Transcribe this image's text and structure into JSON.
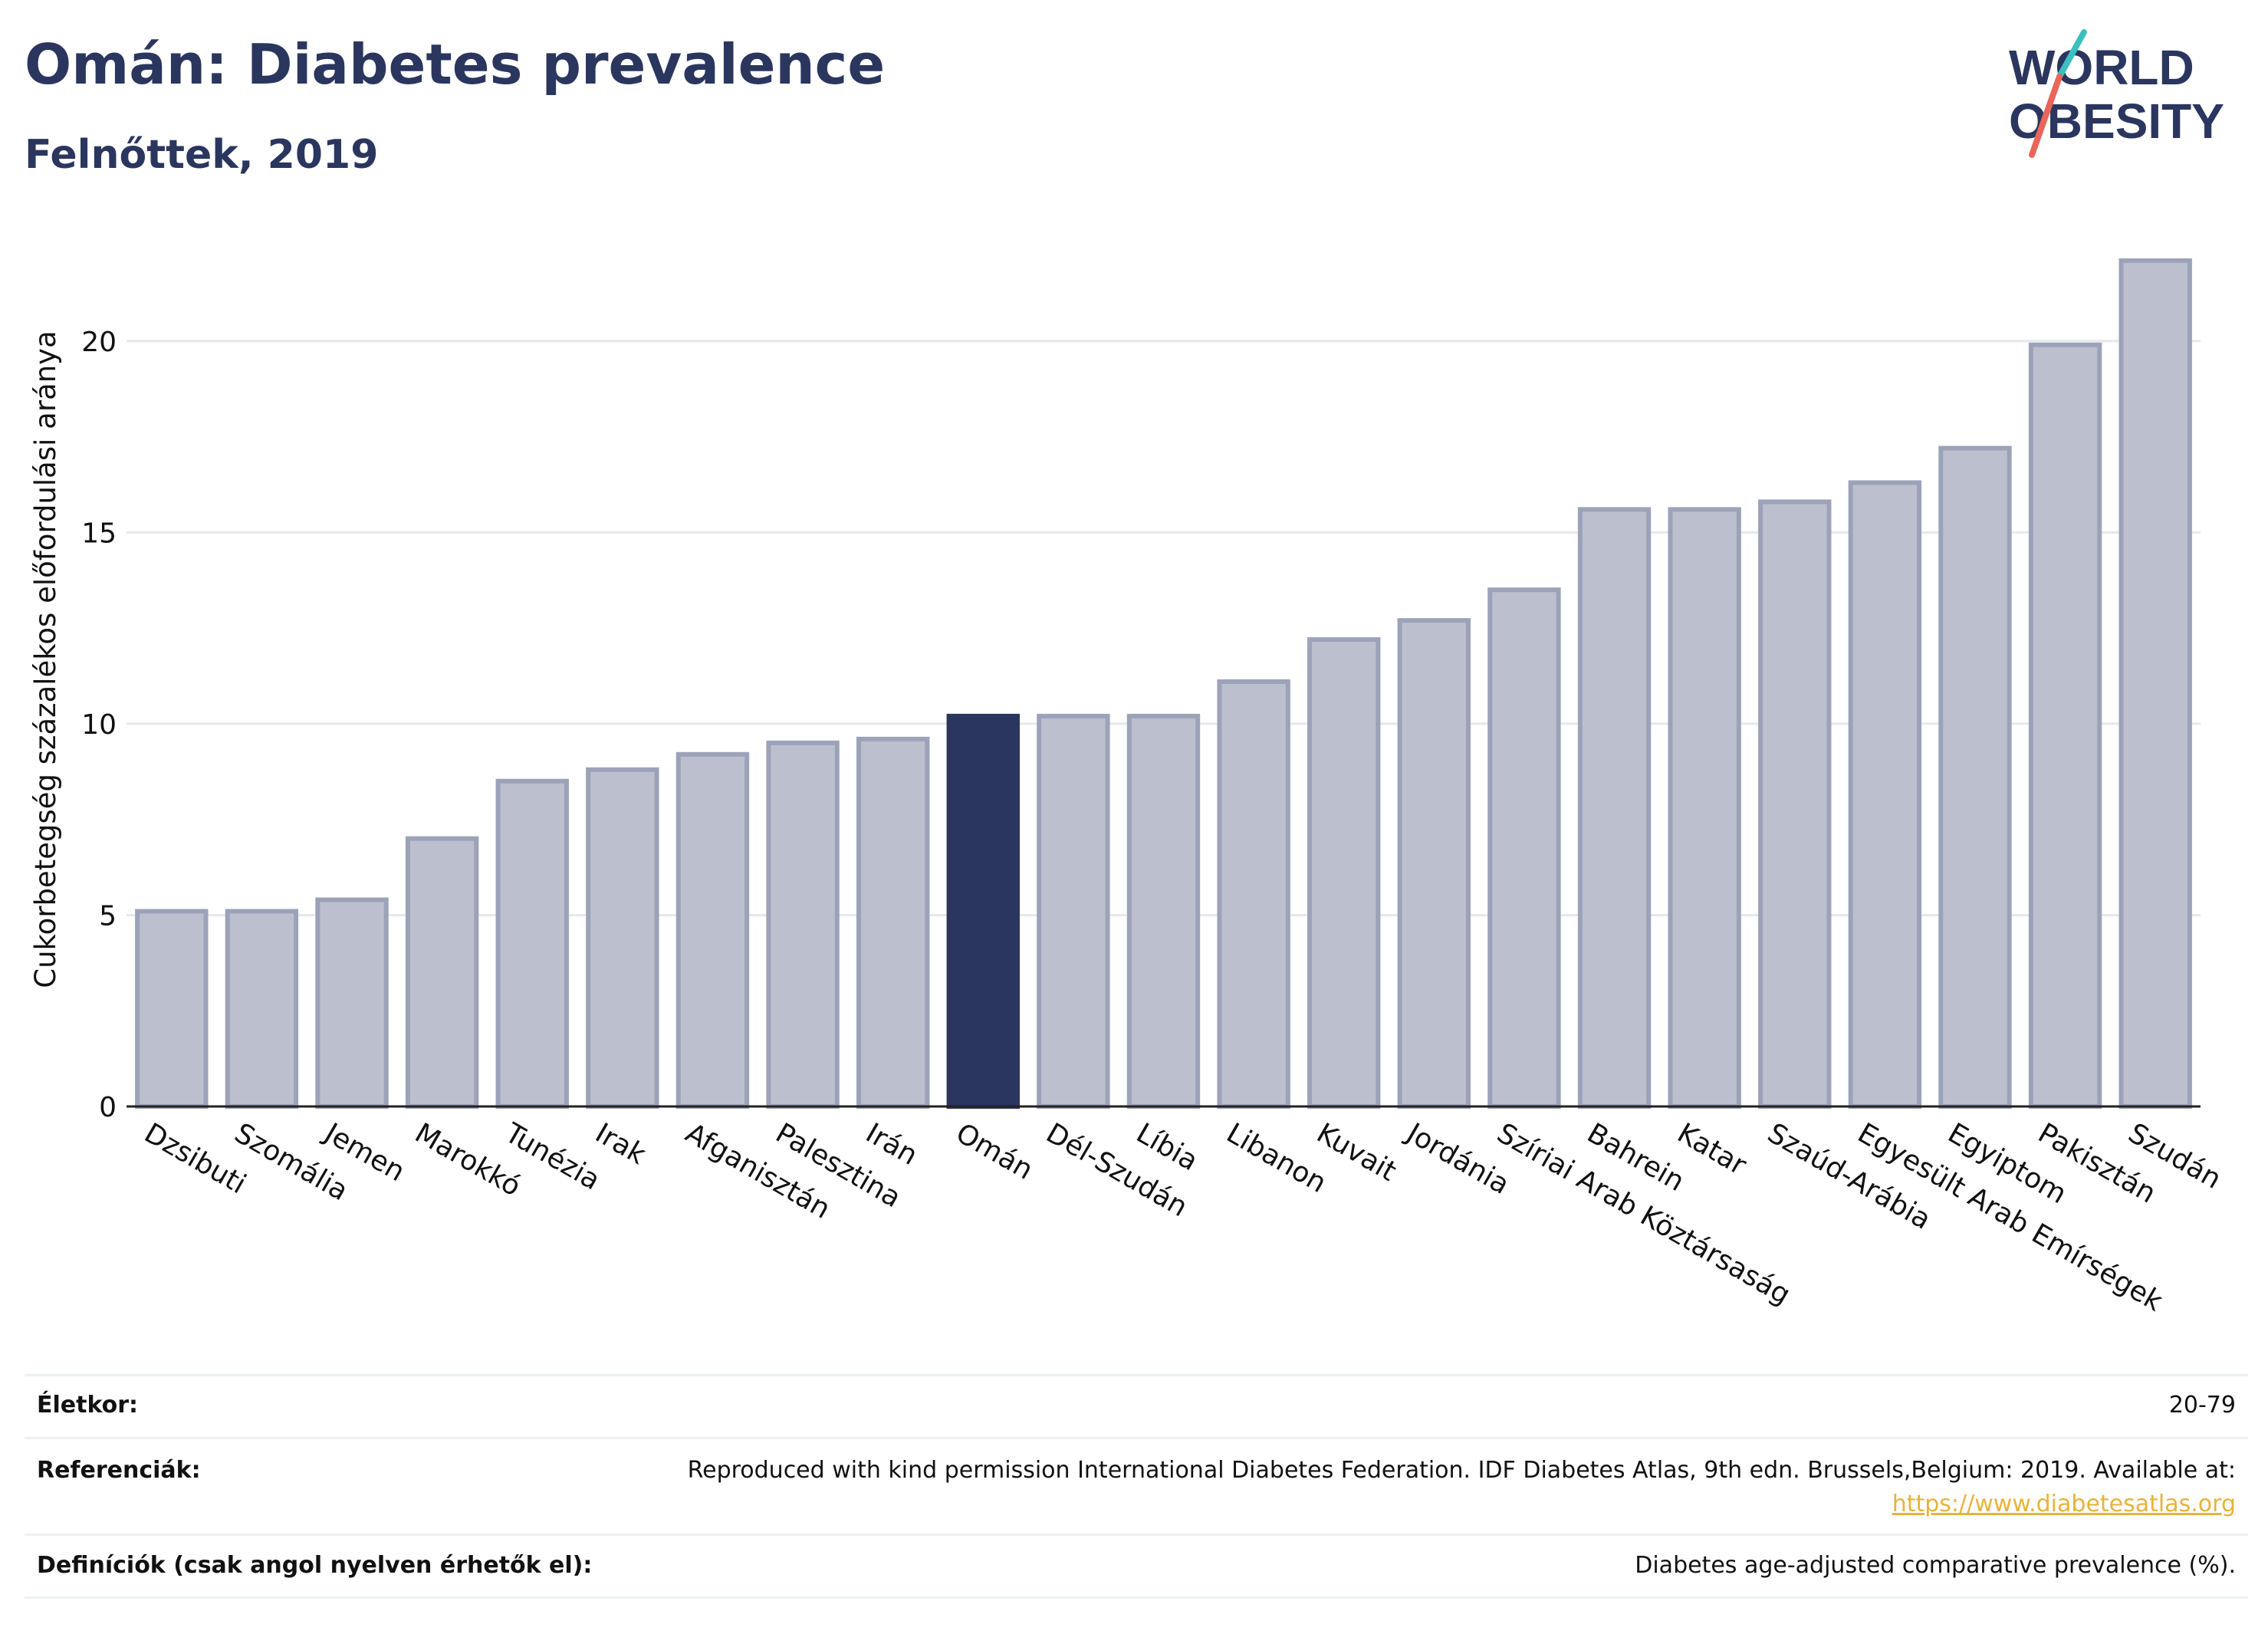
{
  "header": {
    "title": "Omán: Diabetes prevalence",
    "subtitle": "Felnőttek, 2019"
  },
  "logo": {
    "line1": "WORLD",
    "line2": "OBESITY",
    "accent_teal": "#3bbfbf",
    "accent_red": "#e8665a"
  },
  "chart_data": {
    "type": "bar",
    "ylabel": "Cukorbetegség százalékos előfordulási aránya",
    "ylim": [
      0,
      22.5
    ],
    "yticks": [
      0,
      5,
      10,
      15,
      20
    ],
    "grid": true,
    "highlight": "Omán",
    "colors": {
      "bar": "#bcc0ce",
      "bar_edge": "#9ca2b8",
      "highlight": "#2b365f"
    },
    "categories": [
      "Dzsibuti",
      "Szomália",
      "Jemen",
      "Marokkó",
      "Tunézia",
      "Irak",
      "Afganisztán",
      "Palesztina",
      "Irán",
      "Omán",
      "Dél-Szudán",
      "Líbia",
      "Libanon",
      "Kuvait",
      "Jordánia",
      "Szíriai Arab Köztársaság",
      "Bahrein",
      "Katar",
      "Szaúd-Arábia",
      "Egyesült Arab Emírségek",
      "Egyiptom",
      "Pakisztán",
      "Szudán"
    ],
    "values": [
      5.1,
      5.1,
      5.4,
      7.0,
      8.5,
      8.8,
      9.2,
      9.5,
      9.6,
      10.2,
      10.2,
      10.2,
      11.1,
      12.2,
      12.7,
      13.5,
      15.6,
      15.6,
      15.8,
      16.3,
      17.2,
      19.9,
      22.1
    ]
  },
  "meta": {
    "age_label": "Életkor:",
    "age_value": "20-79",
    "ref_label": "Referenciák:",
    "ref_text": "Reproduced with kind permission International Diabetes Federation. IDF Diabetes Atlas, 9th edn. Brussels,Belgium: 2019. Available at:",
    "ref_link": "https://www.diabetesatlas.org",
    "def_label": "Definíciók (csak angol nyelven érhetők el):",
    "def_value": "Diabetes age-adjusted comparative prevalence (%)."
  }
}
